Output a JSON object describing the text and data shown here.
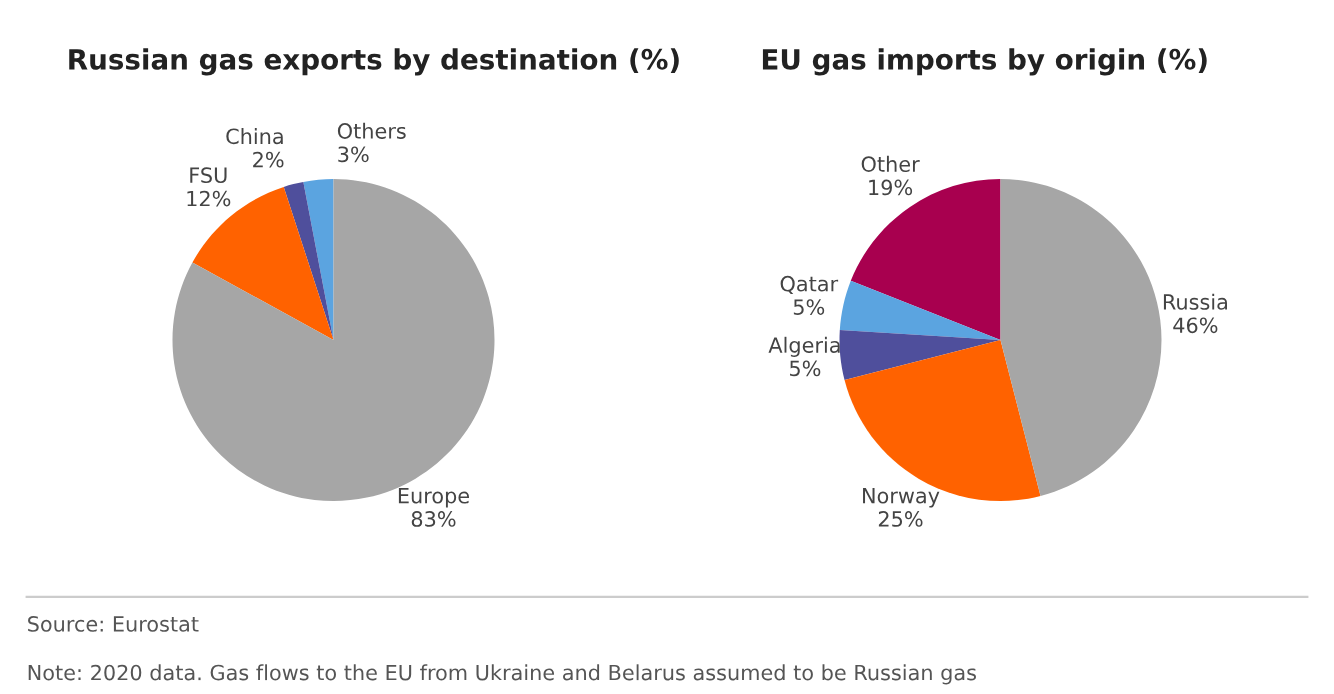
{
  "chart_data": [
    {
      "type": "pie",
      "title": "Russian gas exports by destination (%)",
      "categories": [
        "Others",
        "China",
        "FSU",
        "Europe"
      ],
      "values": [
        3,
        2,
        12,
        83
      ],
      "colors": [
        "#5ba4e0",
        "#4f4f9c",
        "#ff6200",
        "#a6a6a6"
      ],
      "value_labels": [
        "3%",
        "2%",
        "12%",
        "83%"
      ],
      "annotations": [
        "Source: Eurostat",
        "Note: 2020 data. Gas flows to the EU from Ukraine and Belarus assumed to be Russian gas"
      ]
    },
    {
      "type": "pie",
      "title": "EU gas imports by origin (%)",
      "categories": [
        "Other",
        "Qatar",
        "Algeria",
        "Norway",
        "Russia"
      ],
      "values": [
        19,
        5,
        5,
        25,
        46
      ],
      "colors": [
        "#a8004f",
        "#5ba4e0",
        "#4f4f9c",
        "#ff6200",
        "#a6a6a6"
      ],
      "value_labels": [
        "19%",
        "5%",
        "5%",
        "25%",
        "46%"
      ]
    }
  ]
}
